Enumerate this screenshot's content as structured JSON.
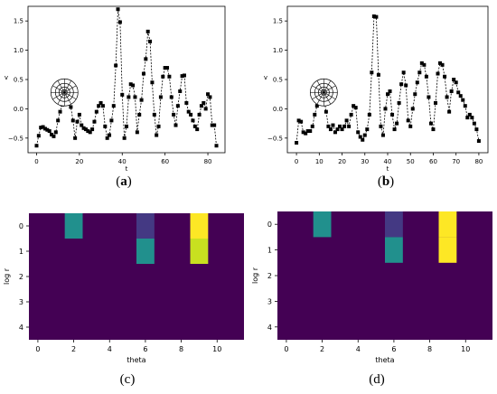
{
  "captions": {
    "a": {
      "open": "(",
      "letter": "a",
      "close": ")"
    },
    "b": {
      "open": "(",
      "letter": "b",
      "close": ")"
    },
    "c": "(c)",
    "d": "(d)"
  },
  "chart_data": [
    {
      "id": "a",
      "type": "line",
      "style": "dashed black line with square markers",
      "xlabel": "t",
      "ylabel": "v",
      "xlim": [
        -4,
        88
      ],
      "ylim": [
        -0.75,
        1.75
      ],
      "xticks": [
        "0",
        "20",
        "40",
        "60",
        "80"
      ],
      "xtick_values": [
        0,
        20,
        40,
        60,
        80
      ],
      "yticks": [
        "−0.5",
        "0.0",
        "0.5",
        "1.0",
        "1.5"
      ],
      "ytick_values": [
        -0.5,
        0,
        0.5,
        1.0,
        1.5
      ],
      "annotation": "log-polar sampling grid icon",
      "annotation_pos_data": [
        13,
        0.28
      ],
      "x": [
        0,
        1,
        2,
        3,
        4,
        5,
        6,
        7,
        8,
        9,
        10,
        11,
        12,
        13,
        14,
        15,
        16,
        17,
        18,
        19,
        20,
        21,
        22,
        23,
        24,
        25,
        26,
        27,
        28,
        29,
        30,
        31,
        32,
        33,
        34,
        35,
        36,
        37,
        38,
        39,
        40,
        41,
        42,
        43,
        44,
        45,
        46,
        47,
        48,
        49,
        50,
        51,
        52,
        53,
        54,
        55,
        56,
        57,
        58,
        59,
        60,
        61,
        62,
        63,
        64,
        65,
        66,
        67,
        68,
        69,
        70,
        71,
        72,
        73,
        74,
        75,
        76,
        77,
        78,
        79,
        80,
        81,
        82,
        83,
        84
      ],
      "y": [
        -0.63,
        -0.46,
        -0.32,
        -0.31,
        -0.34,
        -0.36,
        -0.38,
        -0.44,
        -0.47,
        -0.4,
        -0.2,
        -0.05,
        0.07,
        0.22,
        0.28,
        0.2,
        0.03,
        -0.2,
        -0.5,
        -0.22,
        -0.1,
        -0.28,
        -0.33,
        -0.35,
        -0.38,
        -0.4,
        -0.35,
        -0.22,
        -0.05,
        0.05,
        0.1,
        0.05,
        -0.3,
        -0.5,
        -0.45,
        -0.2,
        0.05,
        0.74,
        1.7,
        1.48,
        0.24,
        -0.5,
        -0.3,
        0.2,
        0.42,
        0.4,
        0.2,
        -0.4,
        -0.1,
        0.15,
        0.6,
        0.85,
        1.32,
        1.15,
        0.45,
        -0.1,
        -0.45,
        -0.3,
        0.2,
        0.55,
        0.7,
        0.7,
        0.55,
        0.2,
        -0.1,
        -0.28,
        0.05,
        0.3,
        0.56,
        0.57,
        0.1,
        -0.05,
        -0.1,
        -0.2,
        -0.3,
        -0.35,
        -0.1,
        0.05,
        0.1,
        0.0,
        0.25,
        0.2,
        -0.28,
        -0.28,
        -0.63
      ]
    },
    {
      "id": "b",
      "type": "line",
      "style": "dashed black line with square markers",
      "xlabel": "t",
      "ylabel": "v",
      "xlim": [
        -4,
        84
      ],
      "ylim": [
        -0.75,
        1.75
      ],
      "xticks": [
        "0",
        "10",
        "20",
        "30",
        "40",
        "50",
        "60",
        "70",
        "80"
      ],
      "xtick_values": [
        0,
        10,
        20,
        30,
        40,
        50,
        60,
        70,
        80
      ],
      "yticks": [
        "−0.5",
        "0.0",
        "0.5",
        "1.0",
        "1.5"
      ],
      "ytick_values": [
        -0.5,
        0,
        0.5,
        1.0,
        1.5
      ],
      "annotation": "log-polar sampling grid icon",
      "annotation_pos_data": [
        12,
        0.28
      ],
      "x": [
        0,
        1,
        2,
        3,
        4,
        5,
        6,
        7,
        8,
        9,
        10,
        11,
        12,
        13,
        14,
        15,
        16,
        17,
        18,
        19,
        20,
        21,
        22,
        23,
        24,
        25,
        26,
        27,
        28,
        29,
        30,
        31,
        32,
        33,
        34,
        35,
        36,
        37,
        38,
        39,
        40,
        41,
        42,
        43,
        44,
        45,
        46,
        47,
        48,
        49,
        50,
        51,
        52,
        53,
        54,
        55,
        56,
        57,
        58,
        59,
        60,
        61,
        62,
        63,
        64,
        65,
        66,
        67,
        68,
        69,
        70,
        71,
        72,
        73,
        74,
        75,
        76,
        77,
        78,
        79,
        80
      ],
      "y": [
        -0.58,
        -0.2,
        -0.22,
        -0.4,
        -0.42,
        -0.38,
        -0.38,
        -0.3,
        -0.1,
        0.05,
        0.15,
        0.28,
        0.2,
        -0.05,
        -0.3,
        -0.35,
        -0.28,
        -0.4,
        -0.35,
        -0.3,
        -0.35,
        -0.3,
        -0.2,
        -0.3,
        -0.1,
        0.05,
        0.02,
        -0.4,
        -0.48,
        -0.53,
        -0.45,
        -0.35,
        -0.1,
        0.62,
        1.58,
        1.57,
        0.58,
        -0.3,
        -0.45,
        0.0,
        0.25,
        0.3,
        -0.1,
        -0.35,
        -0.25,
        0.1,
        0.42,
        0.62,
        0.4,
        -0.2,
        -0.3,
        0.0,
        0.25,
        0.45,
        0.62,
        0.78,
        0.75,
        0.55,
        0.2,
        -0.25,
        -0.35,
        0.1,
        0.6,
        0.78,
        0.75,
        0.55,
        0.2,
        -0.05,
        0.3,
        0.5,
        0.45,
        0.28,
        0.22,
        0.15,
        0.05,
        -0.15,
        -0.1,
        -0.15,
        -0.25,
        -0.35,
        -0.55
      ]
    },
    {
      "id": "c",
      "type": "heatmap",
      "xlabel": "theta",
      "ylabel": "log r",
      "xlim": [
        -0.5,
        11.5
      ],
      "ylim": [
        4.5,
        -0.5
      ],
      "xticks": [
        "0",
        "2",
        "4",
        "6",
        "8",
        "10"
      ],
      "xtick_values": [
        0,
        2,
        4,
        6,
        8,
        10
      ],
      "yticks": [
        "0",
        "1",
        "2",
        "3",
        "4"
      ],
      "ytick_values": [
        0,
        1,
        2,
        3,
        4
      ],
      "background_color": "#440154",
      "cells": [
        {
          "col": 2,
          "row": 0,
          "color": "#21908d"
        },
        {
          "col": 6,
          "row": 0,
          "color": "#443983"
        },
        {
          "col": 6,
          "row": 1,
          "color": "#21908d"
        },
        {
          "col": 9,
          "row": 0,
          "color": "#fde725"
        },
        {
          "col": 9,
          "row": 1,
          "color": "#c8e020"
        }
      ]
    },
    {
      "id": "d",
      "type": "heatmap",
      "xlabel": "theta",
      "ylabel": "log r",
      "xlim": [
        -0.5,
        11.5
      ],
      "ylim": [
        4.5,
        -0.5
      ],
      "xticks": [
        "0",
        "2",
        "4",
        "6",
        "8",
        "10"
      ],
      "xtick_values": [
        0,
        2,
        4,
        6,
        8,
        10
      ],
      "yticks": [
        "0",
        "1",
        "2",
        "3",
        "4"
      ],
      "ytick_values": [
        0,
        1,
        2,
        3,
        4
      ],
      "background_color": "#440154",
      "cells": [
        {
          "col": 2,
          "row": 0,
          "color": "#21908d"
        },
        {
          "col": 6,
          "row": 0,
          "color": "#443983"
        },
        {
          "col": 6,
          "row": 1,
          "color": "#21908d"
        },
        {
          "col": 9,
          "row": 0,
          "color": "#fde725"
        },
        {
          "col": 9,
          "row": 1,
          "color": "#fde725"
        }
      ]
    }
  ]
}
